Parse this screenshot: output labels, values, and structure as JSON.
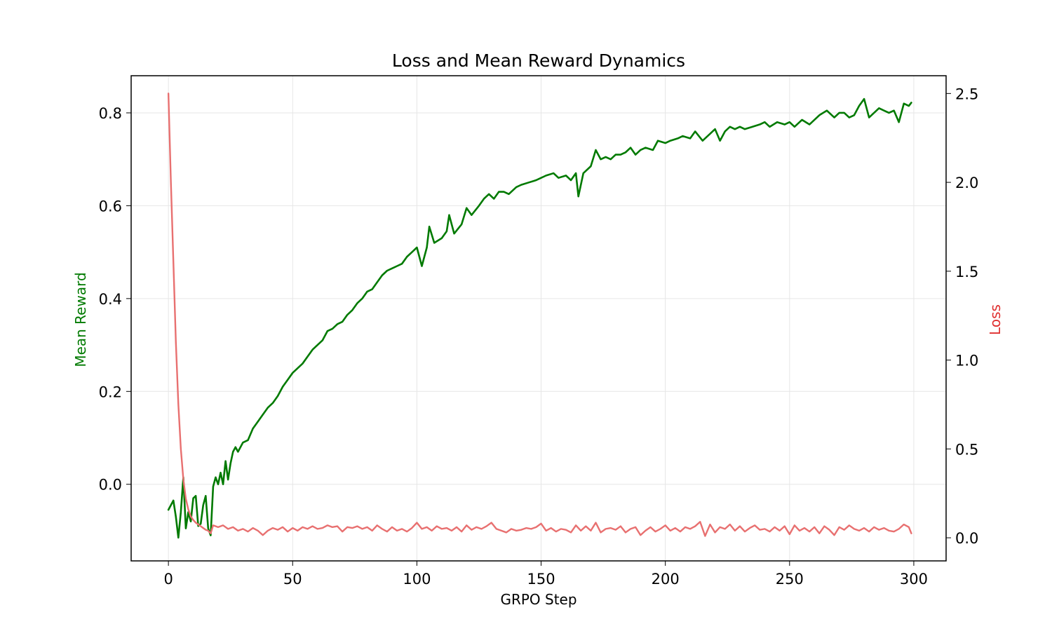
{
  "chart_data": {
    "type": "line",
    "title": "Loss and Mean Reward Dynamics",
    "xlabel": "GRPO Step",
    "ylabel_left": "Mean Reward",
    "ylabel_right": "Loss",
    "xlim": [
      -15,
      313
    ],
    "ylim_left": [
      -0.165,
      0.88
    ],
    "ylim_right": [
      -0.13,
      2.6
    ],
    "x_ticks": [
      0,
      50,
      100,
      150,
      200,
      250,
      300
    ],
    "y_left_ticks": [
      0.0,
      0.2,
      0.4,
      0.6,
      0.8
    ],
    "y_right_ticks": [
      0.0,
      0.5,
      1.0,
      1.5,
      2.0,
      2.5
    ],
    "grid": true,
    "colors": {
      "reward": "#007a00",
      "loss": "#e87070",
      "left_axis_label": "#007a00",
      "right_axis_label": "#e03030"
    },
    "series": [
      {
        "name": "Mean Reward",
        "axis": "left",
        "keypoints": [
          [
            0,
            -0.055
          ],
          [
            1,
            -0.045
          ],
          [
            2,
            -0.035
          ],
          [
            3,
            -0.07
          ],
          [
            4,
            -0.115
          ],
          [
            5,
            -0.06
          ],
          [
            6,
            0.015
          ],
          [
            7,
            -0.095
          ],
          [
            8,
            -0.06
          ],
          [
            9,
            -0.08
          ],
          [
            10,
            -0.03
          ],
          [
            11,
            -0.025
          ],
          [
            12,
            -0.09
          ],
          [
            13,
            -0.085
          ],
          [
            14,
            -0.045
          ],
          [
            15,
            -0.025
          ],
          [
            16,
            -0.095
          ],
          [
            17,
            -0.11
          ],
          [
            18,
            -0.005
          ],
          [
            19,
            0.015
          ],
          [
            20,
            0.0
          ],
          [
            21,
            0.025
          ],
          [
            22,
            0.0
          ],
          [
            23,
            0.05
          ],
          [
            24,
            0.01
          ],
          [
            25,
            0.045
          ],
          [
            26,
            0.07
          ],
          [
            27,
            0.08
          ],
          [
            28,
            0.07
          ],
          [
            30,
            0.09
          ],
          [
            32,
            0.095
          ],
          [
            34,
            0.12
          ],
          [
            36,
            0.135
          ],
          [
            38,
            0.15
          ],
          [
            40,
            0.165
          ],
          [
            42,
            0.175
          ],
          [
            44,
            0.19
          ],
          [
            46,
            0.21
          ],
          [
            48,
            0.225
          ],
          [
            50,
            0.24
          ],
          [
            52,
            0.25
          ],
          [
            54,
            0.26
          ],
          [
            56,
            0.275
          ],
          [
            58,
            0.29
          ],
          [
            60,
            0.3
          ],
          [
            62,
            0.31
          ],
          [
            64,
            0.33
          ],
          [
            66,
            0.335
          ],
          [
            68,
            0.345
          ],
          [
            70,
            0.35
          ],
          [
            72,
            0.365
          ],
          [
            74,
            0.375
          ],
          [
            76,
            0.39
          ],
          [
            78,
            0.4
          ],
          [
            80,
            0.415
          ],
          [
            82,
            0.42
          ],
          [
            84,
            0.435
          ],
          [
            86,
            0.45
          ],
          [
            88,
            0.46
          ],
          [
            90,
            0.465
          ],
          [
            92,
            0.47
          ],
          [
            94,
            0.475
          ],
          [
            96,
            0.49
          ],
          [
            98,
            0.5
          ],
          [
            100,
            0.51
          ],
          [
            102,
            0.47
          ],
          [
            104,
            0.51
          ],
          [
            105,
            0.555
          ],
          [
            107,
            0.52
          ],
          [
            110,
            0.53
          ],
          [
            112,
            0.545
          ],
          [
            113,
            0.58
          ],
          [
            115,
            0.54
          ],
          [
            118,
            0.56
          ],
          [
            120,
            0.595
          ],
          [
            122,
            0.58
          ],
          [
            125,
            0.6
          ],
          [
            127,
            0.615
          ],
          [
            129,
            0.625
          ],
          [
            131,
            0.615
          ],
          [
            133,
            0.63
          ],
          [
            135,
            0.63
          ],
          [
            137,
            0.625
          ],
          [
            140,
            0.64
          ],
          [
            142,
            0.645
          ],
          [
            145,
            0.65
          ],
          [
            148,
            0.655
          ],
          [
            150,
            0.66
          ],
          [
            152,
            0.665
          ],
          [
            155,
            0.67
          ],
          [
            157,
            0.66
          ],
          [
            160,
            0.665
          ],
          [
            162,
            0.655
          ],
          [
            164,
            0.67
          ],
          [
            165,
            0.62
          ],
          [
            167,
            0.67
          ],
          [
            170,
            0.685
          ],
          [
            172,
            0.72
          ],
          [
            174,
            0.7
          ],
          [
            176,
            0.705
          ],
          [
            178,
            0.7
          ],
          [
            180,
            0.71
          ],
          [
            182,
            0.71
          ],
          [
            184,
            0.715
          ],
          [
            186,
            0.725
          ],
          [
            188,
            0.71
          ],
          [
            190,
            0.72
          ],
          [
            192,
            0.725
          ],
          [
            195,
            0.72
          ],
          [
            197,
            0.74
          ],
          [
            200,
            0.735
          ],
          [
            202,
            0.74
          ],
          [
            205,
            0.745
          ],
          [
            207,
            0.75
          ],
          [
            210,
            0.745
          ],
          [
            212,
            0.76
          ],
          [
            215,
            0.74
          ],
          [
            218,
            0.755
          ],
          [
            220,
            0.765
          ],
          [
            222,
            0.74
          ],
          [
            224,
            0.76
          ],
          [
            226,
            0.77
          ],
          [
            228,
            0.765
          ],
          [
            230,
            0.77
          ],
          [
            232,
            0.765
          ],
          [
            235,
            0.77
          ],
          [
            238,
            0.775
          ],
          [
            240,
            0.78
          ],
          [
            242,
            0.77
          ],
          [
            245,
            0.78
          ],
          [
            248,
            0.775
          ],
          [
            250,
            0.78
          ],
          [
            252,
            0.77
          ],
          [
            255,
            0.785
          ],
          [
            258,
            0.775
          ],
          [
            260,
            0.785
          ],
          [
            262,
            0.795
          ],
          [
            265,
            0.805
          ],
          [
            268,
            0.79
          ],
          [
            270,
            0.8
          ],
          [
            272,
            0.8
          ],
          [
            274,
            0.79
          ],
          [
            276,
            0.795
          ],
          [
            278,
            0.815
          ],
          [
            280,
            0.83
          ],
          [
            282,
            0.79
          ],
          [
            284,
            0.8
          ],
          [
            286,
            0.81
          ],
          [
            288,
            0.805
          ],
          [
            290,
            0.8
          ],
          [
            292,
            0.805
          ],
          [
            294,
            0.78
          ],
          [
            296,
            0.82
          ],
          [
            298,
            0.815
          ],
          [
            299,
            0.822
          ]
        ]
      },
      {
        "name": "Loss",
        "axis": "right",
        "keypoints": [
          [
            0,
            2.5
          ],
          [
            1,
            2.0
          ],
          [
            2,
            1.55
          ],
          [
            3,
            1.1
          ],
          [
            4,
            0.75
          ],
          [
            5,
            0.5
          ],
          [
            6,
            0.33
          ],
          [
            7,
            0.22
          ],
          [
            8,
            0.16
          ],
          [
            9,
            0.12
          ],
          [
            10,
            0.1
          ],
          [
            11,
            0.085
          ],
          [
            12,
            0.075
          ],
          [
            13,
            0.065
          ],
          [
            14,
            0.055
          ],
          [
            15,
            0.045
          ],
          [
            16,
            0.04
          ],
          [
            17,
            0.025
          ],
          [
            18,
            0.07
          ],
          [
            20,
            0.06
          ],
          [
            22,
            0.07
          ],
          [
            24,
            0.05
          ],
          [
            26,
            0.06
          ],
          [
            28,
            0.04
          ],
          [
            30,
            0.05
          ],
          [
            32,
            0.035
          ],
          [
            34,
            0.055
          ],
          [
            36,
            0.04
          ],
          [
            38,
            0.015
          ],
          [
            40,
            0.04
          ],
          [
            42,
            0.055
          ],
          [
            44,
            0.045
          ],
          [
            46,
            0.06
          ],
          [
            48,
            0.035
          ],
          [
            50,
            0.055
          ],
          [
            52,
            0.04
          ],
          [
            54,
            0.06
          ],
          [
            56,
            0.05
          ],
          [
            58,
            0.065
          ],
          [
            60,
            0.05
          ],
          [
            62,
            0.055
          ],
          [
            64,
            0.07
          ],
          [
            66,
            0.06
          ],
          [
            68,
            0.065
          ],
          [
            70,
            0.035
          ],
          [
            72,
            0.06
          ],
          [
            74,
            0.055
          ],
          [
            76,
            0.065
          ],
          [
            78,
            0.05
          ],
          [
            80,
            0.06
          ],
          [
            82,
            0.04
          ],
          [
            84,
            0.07
          ],
          [
            86,
            0.05
          ],
          [
            88,
            0.035
          ],
          [
            90,
            0.06
          ],
          [
            92,
            0.04
          ],
          [
            94,
            0.05
          ],
          [
            96,
            0.035
          ],
          [
            98,
            0.055
          ],
          [
            100,
            0.085
          ],
          [
            102,
            0.05
          ],
          [
            104,
            0.06
          ],
          [
            106,
            0.04
          ],
          [
            108,
            0.065
          ],
          [
            110,
            0.05
          ],
          [
            112,
            0.055
          ],
          [
            114,
            0.04
          ],
          [
            116,
            0.06
          ],
          [
            118,
            0.035
          ],
          [
            120,
            0.07
          ],
          [
            122,
            0.045
          ],
          [
            124,
            0.06
          ],
          [
            126,
            0.05
          ],
          [
            128,
            0.065
          ],
          [
            130,
            0.085
          ],
          [
            132,
            0.05
          ],
          [
            134,
            0.04
          ],
          [
            136,
            0.03
          ],
          [
            138,
            0.05
          ],
          [
            140,
            0.04
          ],
          [
            142,
            0.045
          ],
          [
            144,
            0.055
          ],
          [
            146,
            0.05
          ],
          [
            148,
            0.06
          ],
          [
            150,
            0.08
          ],
          [
            152,
            0.04
          ],
          [
            154,
            0.055
          ],
          [
            156,
            0.035
          ],
          [
            158,
            0.05
          ],
          [
            160,
            0.045
          ],
          [
            162,
            0.03
          ],
          [
            164,
            0.07
          ],
          [
            166,
            0.04
          ],
          [
            168,
            0.065
          ],
          [
            170,
            0.04
          ],
          [
            172,
            0.085
          ],
          [
            174,
            0.03
          ],
          [
            176,
            0.05
          ],
          [
            178,
            0.055
          ],
          [
            180,
            0.045
          ],
          [
            182,
            0.065
          ],
          [
            184,
            0.03
          ],
          [
            186,
            0.05
          ],
          [
            188,
            0.06
          ],
          [
            190,
            0.015
          ],
          [
            192,
            0.04
          ],
          [
            194,
            0.06
          ],
          [
            196,
            0.035
          ],
          [
            198,
            0.05
          ],
          [
            200,
            0.07
          ],
          [
            202,
            0.04
          ],
          [
            204,
            0.055
          ],
          [
            206,
            0.035
          ],
          [
            208,
            0.06
          ],
          [
            210,
            0.05
          ],
          [
            212,
            0.065
          ],
          [
            214,
            0.09
          ],
          [
            216,
            0.01
          ],
          [
            218,
            0.075
          ],
          [
            220,
            0.03
          ],
          [
            222,
            0.06
          ],
          [
            224,
            0.05
          ],
          [
            226,
            0.075
          ],
          [
            228,
            0.04
          ],
          [
            230,
            0.065
          ],
          [
            232,
            0.035
          ],
          [
            234,
            0.055
          ],
          [
            236,
            0.07
          ],
          [
            238,
            0.045
          ],
          [
            240,
            0.05
          ],
          [
            242,
            0.035
          ],
          [
            244,
            0.06
          ],
          [
            246,
            0.04
          ],
          [
            248,
            0.065
          ],
          [
            250,
            0.02
          ],
          [
            252,
            0.07
          ],
          [
            254,
            0.04
          ],
          [
            256,
            0.055
          ],
          [
            258,
            0.035
          ],
          [
            260,
            0.06
          ],
          [
            262,
            0.025
          ],
          [
            264,
            0.065
          ],
          [
            266,
            0.045
          ],
          [
            268,
            0.015
          ],
          [
            270,
            0.06
          ],
          [
            272,
            0.045
          ],
          [
            274,
            0.07
          ],
          [
            276,
            0.05
          ],
          [
            278,
            0.04
          ],
          [
            280,
            0.055
          ],
          [
            282,
            0.035
          ],
          [
            284,
            0.06
          ],
          [
            286,
            0.045
          ],
          [
            288,
            0.055
          ],
          [
            290,
            0.04
          ],
          [
            292,
            0.035
          ],
          [
            294,
            0.05
          ],
          [
            296,
            0.075
          ],
          [
            298,
            0.06
          ],
          [
            299,
            0.025
          ]
        ]
      }
    ]
  }
}
